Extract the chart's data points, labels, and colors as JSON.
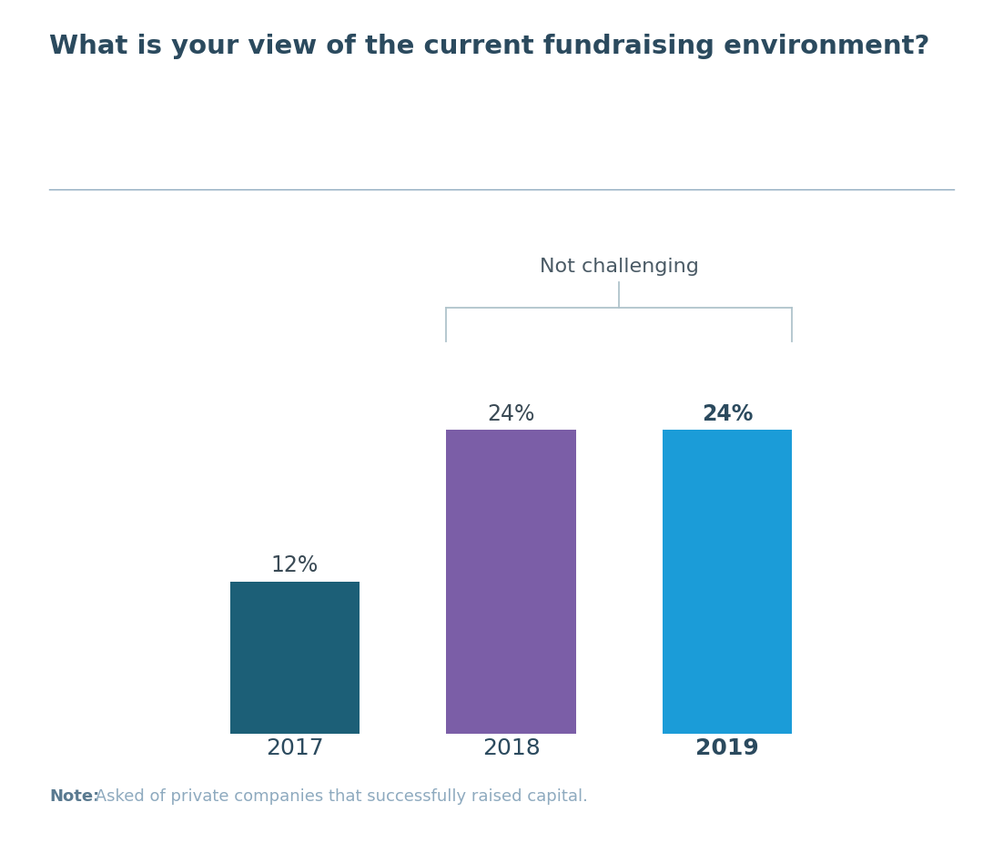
{
  "title": "What is your view of the current fundraising environment?",
  "title_color": "#2b4a5e",
  "title_fontsize": 21,
  "title_fontweight": "bold",
  "categories": [
    "2017",
    "2018",
    "2019"
  ],
  "values": [
    12,
    24,
    24
  ],
  "bar_colors": [
    "#1c5f77",
    "#7b5ea7",
    "#1b9cd8"
  ],
  "value_labels": [
    "12%",
    "24%",
    "24%"
  ],
  "value_label_fontsize": 17,
  "value_label_colors": [
    "#3a4a55",
    "#3a4a55",
    "#2b4a5e"
  ],
  "value_label_fontweights": [
    "normal",
    "normal",
    "bold"
  ],
  "xlabels_fontsize": 18,
  "xlabel_fontweights": [
    "normal",
    "normal",
    "bold"
  ],
  "xlabel_color": "#2b4a5e",
  "bracket_label": "Not challenging",
  "bracket_label_fontsize": 16,
  "bracket_label_color": "#4a5a65",
  "bracket_color": "#b0c4cc",
  "note_bold": "Note:",
  "note_text": " Asked of private companies that successfully raised capital.",
  "note_fontsize": 13,
  "note_color": "#8eaabf",
  "note_bold_color": "#5a7a90",
  "separator_color": "#8eaabf",
  "background_color": "#ffffff",
  "ylim": [
    0,
    28
  ],
  "bar_width": 0.6
}
